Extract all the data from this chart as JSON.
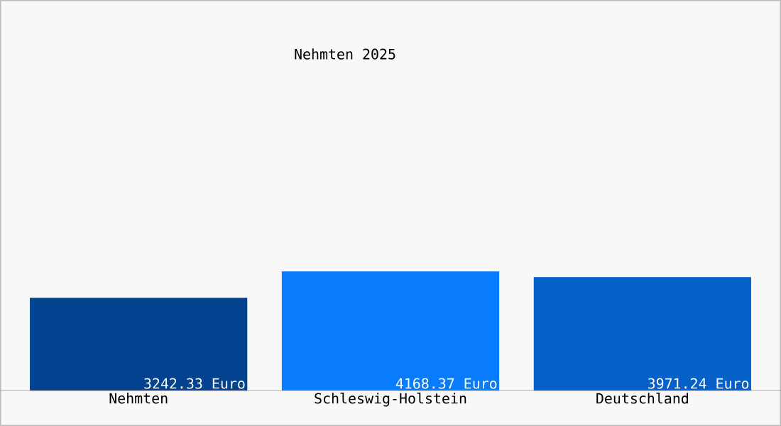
{
  "chart_data": {
    "type": "bar",
    "title": "Nehmten 2025",
    "categories": [
      "Nehmten",
      "Schleswig-Holstein",
      "Deutschland"
    ],
    "values": [
      3242.33,
      4168.37,
      3971.24
    ],
    "value_labels": [
      "3242.33 Euro",
      "4168.37 Euro",
      "3971.24 Euro"
    ],
    "colors": [
      "#03428f",
      "#087cfc",
      "#0561c8"
    ]
  }
}
